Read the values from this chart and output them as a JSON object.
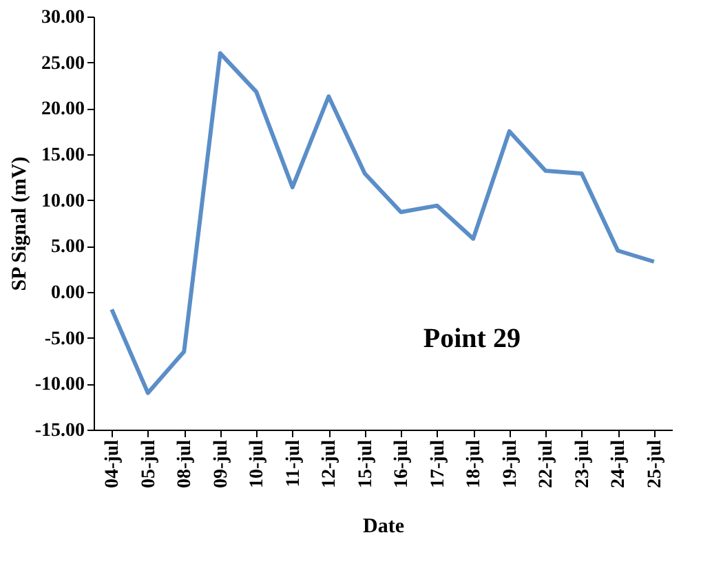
{
  "chart_data": {
    "type": "line",
    "xlabel": "Date",
    "ylabel": "SP Signal (mV)",
    "categories": [
      "04-jul",
      "05-jul",
      "08-jul",
      "09-jul",
      "10-jul",
      "11-jul",
      "12-jul",
      "15-jul",
      "16-jul",
      "17-jul",
      "18-jul",
      "19-jul",
      "22-jul",
      "23-jul",
      "24-jul",
      "25-jul"
    ],
    "series": [
      {
        "color": "#5b8ec8",
        "values": [
          -1.9,
          -11.0,
          -6.5,
          26.0,
          21.8,
          11.4,
          21.3,
          12.9,
          8.7,
          9.4,
          5.8,
          17.5,
          13.2,
          12.9,
          4.5,
          3.3
        ]
      }
    ],
    "ylim": [
      -15,
      30
    ],
    "yticks": [
      {
        "value": -15,
        "label": "-15.00"
      },
      {
        "value": -10,
        "label": "-10.00"
      },
      {
        "value": -5,
        "label": "-5.00"
      },
      {
        "value": 0,
        "label": "0.00"
      },
      {
        "value": 5,
        "label": "5.00"
      },
      {
        "value": 10,
        "label": "10.00"
      },
      {
        "value": 15,
        "label": "15.00"
      },
      {
        "value": 20,
        "label": "20.00"
      },
      {
        "value": 25,
        "label": "25.00"
      },
      {
        "value": 30,
        "label": "30.00"
      }
    ],
    "annotations": [
      "Point 29"
    ],
    "grid": false,
    "marker": "none",
    "line_style": "solid"
  }
}
